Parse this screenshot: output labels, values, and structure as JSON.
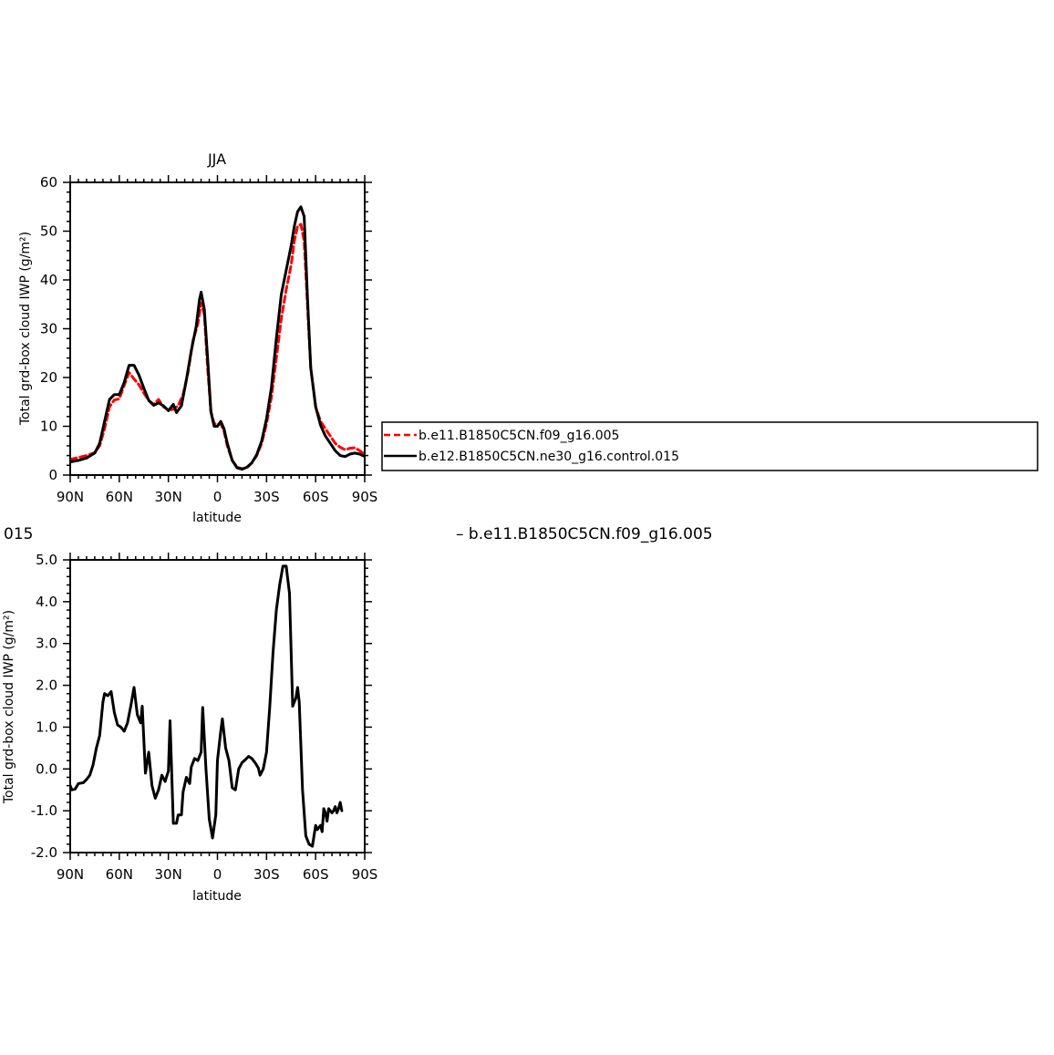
{
  "chart_data": [
    {
      "type": "line",
      "title": "JJA",
      "xlabel": "latitude",
      "ylabel": "Total grd-box cloud IWP (g/m²)",
      "xlim": [
        -90,
        90
      ],
      "ylim": [
        0,
        60
      ],
      "x_ticks": [
        -90,
        -60,
        -30,
        0,
        30,
        60,
        90
      ],
      "x_tick_labels": [
        "90N",
        "60N",
        "30N",
        "0",
        "30S",
        "60S",
        "90S"
      ],
      "y_ticks": [
        0,
        10,
        20,
        30,
        40,
        50,
        60
      ],
      "y_tick_labels": [
        "0",
        "10",
        "20",
        "30",
        "40",
        "50",
        "60"
      ],
      "grid": false,
      "legend_position": "right",
      "series": [
        {
          "name": "b.e11.B1850C5CN.f09_g16.005",
          "color": "#ff0000",
          "dash": "dashed",
          "points": [
            [
              -90,
              3.2
            ],
            [
              -85,
              3.6
            ],
            [
              -80,
              4
            ],
            [
              -75,
              4.6
            ],
            [
              -72,
              6
            ],
            [
              -69,
              9.5
            ],
            [
              -66,
              14
            ],
            [
              -63,
              15.4
            ],
            [
              -60,
              15.6
            ],
            [
              -57,
              18.4
            ],
            [
              -54,
              21
            ],
            [
              -51,
              19.7
            ],
            [
              -48,
              18.5
            ],
            [
              -45,
              16.8
            ],
            [
              -42,
              15.3
            ],
            [
              -39,
              14.5
            ],
            [
              -36,
              15.5
            ],
            [
              -33,
              14
            ],
            [
              -30,
              13.3
            ],
            [
              -27,
              13.5
            ],
            [
              -24,
              14.2
            ],
            [
              -21,
              16.5
            ],
            [
              -18,
              21
            ],
            [
              -15,
              27.5
            ],
            [
              -12,
              31
            ],
            [
              -10,
              35.3
            ],
            [
              -8,
              33
            ],
            [
              -6,
              22
            ],
            [
              -4,
              13
            ],
            [
              -2,
              10.5
            ],
            [
              0,
              10.5
            ],
            [
              2,
              10.5
            ],
            [
              4,
              9
            ],
            [
              6,
              6
            ],
            [
              9,
              3
            ],
            [
              12,
              1.6
            ],
            [
              15,
              1.3
            ],
            [
              18,
              1.5
            ],
            [
              21,
              2.5
            ],
            [
              24,
              4
            ],
            [
              27,
              6.5
            ],
            [
              30,
              10.5
            ],
            [
              33,
              16
            ],
            [
              36,
              24
            ],
            [
              39,
              32
            ],
            [
              42,
              38
            ],
            [
              45,
              43
            ],
            [
              47,
              48
            ],
            [
              49,
              51
            ],
            [
              51,
              51.4
            ],
            [
              53,
              48
            ],
            [
              55,
              35
            ],
            [
              57,
              22
            ],
            [
              60,
              14
            ],
            [
              63,
              11
            ],
            [
              66,
              9.5
            ],
            [
              69,
              8
            ],
            [
              72,
              6.5
            ],
            [
              75,
              5.7
            ],
            [
              78,
              5.2
            ],
            [
              81,
              5.5
            ],
            [
              84,
              5.6
            ],
            [
              87,
              5
            ],
            [
              90,
              4.2
            ]
          ]
        },
        {
          "name": "b.e12.B1850C5CN.ne30_g16.control.015",
          "color": "#000000",
          "dash": "solid",
          "points": [
            [
              -90,
              2.7
            ],
            [
              -85,
              3
            ],
            [
              -80,
              3.5
            ],
            [
              -75,
              4.5
            ],
            [
              -72,
              6.5
            ],
            [
              -69,
              11
            ],
            [
              -66,
              15.5
            ],
            [
              -63,
              16.5
            ],
            [
              -60,
              16.5
            ],
            [
              -57,
              19
            ],
            [
              -54,
              22.5
            ],
            [
              -51,
              22.5
            ],
            [
              -48,
              20.5
            ],
            [
              -45,
              17.8
            ],
            [
              -42,
              15.3
            ],
            [
              -39,
              14.3
            ],
            [
              -36,
              14.8
            ],
            [
              -33,
              14.2
            ],
            [
              -30,
              13.2
            ],
            [
              -27,
              14.5
            ],
            [
              -25,
              12.8
            ],
            [
              -22,
              14.2
            ],
            [
              -19,
              19.5
            ],
            [
              -16,
              25.5
            ],
            [
              -13,
              30.5
            ],
            [
              -11,
              36
            ],
            [
              -10,
              37.5
            ],
            [
              -8,
              34
            ],
            [
              -6,
              24
            ],
            [
              -4,
              13
            ],
            [
              -2,
              10
            ],
            [
              0,
              10
            ],
            [
              2,
              11
            ],
            [
              4,
              9.5
            ],
            [
              6,
              6.5
            ],
            [
              9,
              3
            ],
            [
              12,
              1.5
            ],
            [
              15,
              1.2
            ],
            [
              18,
              1.6
            ],
            [
              21,
              2.5
            ],
            [
              24,
              4.2
            ],
            [
              27,
              7
            ],
            [
              30,
              11.5
            ],
            [
              33,
              18
            ],
            [
              36,
              28
            ],
            [
              39,
              37
            ],
            [
              42,
              42
            ],
            [
              45,
              47
            ],
            [
              47,
              51
            ],
            [
              49,
              54
            ],
            [
              51,
              55
            ],
            [
              53,
              53
            ],
            [
              55,
              36.5
            ],
            [
              57,
              22
            ],
            [
              60,
              14
            ],
            [
              63,
              10.2
            ],
            [
              66,
              8
            ],
            [
              69,
              6.5
            ],
            [
              72,
              5
            ],
            [
              75,
              4
            ],
            [
              78,
              3.8
            ],
            [
              81,
              4.3
            ],
            [
              84,
              4.5
            ],
            [
              87,
              4.3
            ],
            [
              90,
              3.8
            ]
          ]
        }
      ]
    },
    {
      "type": "line",
      "title": "",
      "xlabel": "latitude",
      "ylabel": "Total grd-box cloud IWP (g/m²)",
      "xlim": [
        -90,
        90
      ],
      "ylim": [
        -2.0,
        5.0
      ],
      "x_ticks": [
        -90,
        -60,
        -30,
        0,
        30,
        60,
        90
      ],
      "x_tick_labels": [
        "90N",
        "60N",
        "30N",
        "0",
        "30S",
        "60S",
        "90S"
      ],
      "y_ticks": [
        -2,
        -1,
        0,
        1,
        2,
        3,
        4,
        5
      ],
      "y_tick_labels": [
        "-2.0",
        "-1.0",
        "0.0",
        "1.0",
        "2.0",
        "3.0",
        "4.0",
        "5.0"
      ],
      "grid": false,
      "header_left": "015",
      "header_right": "– b.e11.B1850C5CN.f09_g16.005",
      "series": [
        {
          "name": "",
          "color": "#000000",
          "dash": "solid",
          "points": [
            [
              -90,
              -0.4
            ],
            [
              -89,
              -0.5
            ],
            [
              -87,
              -0.48
            ],
            [
              -85,
              -0.35
            ],
            [
              -82,
              -0.33
            ],
            [
              -80,
              -0.25
            ],
            [
              -78,
              -0.15
            ],
            [
              -76,
              0.1
            ],
            [
              -74,
              0.5
            ],
            [
              -72,
              0.8
            ],
            [
              -70,
              1.6
            ],
            [
              -69,
              1.8
            ],
            [
              -67,
              1.75
            ],
            [
              -65,
              1.85
            ],
            [
              -63,
              1.35
            ],
            [
              -61,
              1.05
            ],
            [
              -59,
              1.0
            ],
            [
              -57,
              0.9
            ],
            [
              -55,
              1.1
            ],
            [
              -53,
              1.5
            ],
            [
              -51,
              1.95
            ],
            [
              -49,
              1.3
            ],
            [
              -47,
              1.1
            ],
            [
              -46,
              1.5
            ],
            [
              -44,
              -0.1
            ],
            [
              -42,
              0.4
            ],
            [
              -40,
              -0.4
            ],
            [
              -38,
              -0.7
            ],
            [
              -36,
              -0.5
            ],
            [
              -34,
              -0.15
            ],
            [
              -32,
              -0.3
            ],
            [
              -30,
              -0.05
            ],
            [
              -29,
              1.15
            ],
            [
              -27,
              -1.3
            ],
            [
              -25,
              -1.3
            ],
            [
              -24,
              -1.1
            ],
            [
              -22,
              -1.1
            ],
            [
              -21,
              -0.55
            ],
            [
              -19,
              -0.2
            ],
            [
              -17,
              -0.35
            ],
            [
              -16,
              0.05
            ],
            [
              -14,
              0.25
            ],
            [
              -12,
              0.2
            ],
            [
              -10,
              0.4
            ],
            [
              -9,
              1.47
            ],
            [
              -7,
              0.0
            ],
            [
              -5,
              -1.2
            ],
            [
              -3,
              -1.65
            ],
            [
              -1,
              -1.1
            ],
            [
              0,
              0.2
            ],
            [
              2,
              0.9
            ],
            [
              3,
              1.2
            ],
            [
              5,
              0.5
            ],
            [
              7,
              0.2
            ],
            [
              9,
              -0.45
            ],
            [
              11,
              -0.5
            ],
            [
              13,
              0.0
            ],
            [
              15,
              0.15
            ],
            [
              17,
              0.22
            ],
            [
              19,
              0.3
            ],
            [
              21,
              0.25
            ],
            [
              23,
              0.15
            ],
            [
              25,
              0.02
            ],
            [
              26,
              -0.15
            ],
            [
              28,
              0.0
            ],
            [
              30,
              0.4
            ],
            [
              32,
              1.5
            ],
            [
              34,
              2.8
            ],
            [
              36,
              3.8
            ],
            [
              38,
              4.4
            ],
            [
              40,
              4.85
            ],
            [
              42,
              4.85
            ],
            [
              44,
              4.2
            ],
            [
              46,
              1.5
            ],
            [
              48,
              1.7
            ],
            [
              49,
              1.95
            ],
            [
              50,
              1.6
            ],
            [
              52,
              -0.5
            ],
            [
              54,
              -1.6
            ],
            [
              56,
              -1.8
            ],
            [
              58,
              -1.85
            ],
            [
              60,
              -1.35
            ],
            [
              61,
              -1.45
            ],
            [
              63,
              -1.35
            ],
            [
              64,
              -1.5
            ],
            [
              65,
              -0.95
            ],
            [
              66,
              -1.05
            ],
            [
              67,
              -1.25
            ],
            [
              68,
              -0.95
            ],
            [
              70,
              -1.05
            ],
            [
              71,
              -1.0
            ],
            [
              72,
              -0.9
            ],
            [
              73,
              -1.05
            ],
            [
              74,
              -0.95
            ],
            [
              75,
              -0.8
            ],
            [
              76,
              -1.0
            ]
          ]
        }
      ]
    }
  ],
  "legend": {
    "items": [
      {
        "label": "b.e11.B1850C5CN.f09_g16.005",
        "color": "#ff0000",
        "dash": "dashed"
      },
      {
        "label": "b.e12.B1850C5CN.ne30_g16.control.015",
        "color": "#000000",
        "dash": "solid"
      }
    ]
  }
}
